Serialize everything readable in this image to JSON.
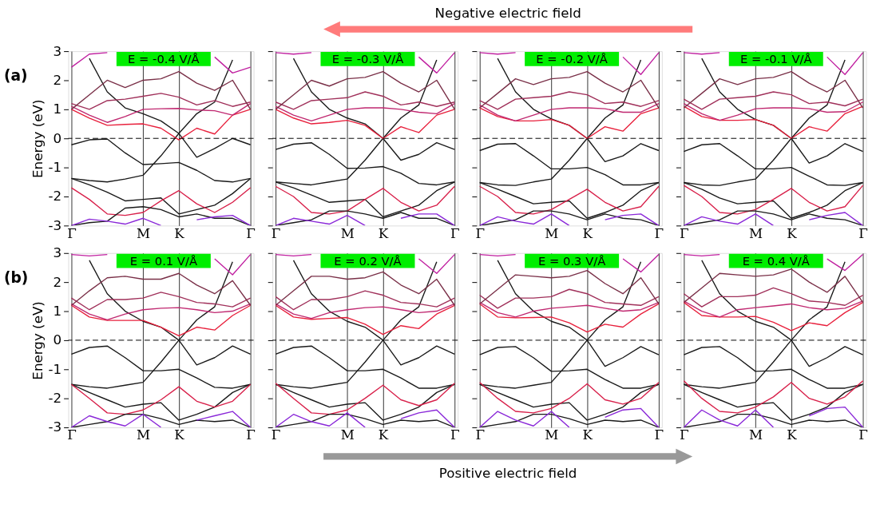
{
  "chart_data": [
    {
      "type": "line",
      "title": "E = -0.4 V/Å",
      "ylabel": "Energy (eV)",
      "annotations": [
        "(a)",
        "Negative electric field"
      ],
      "grid": "x",
      "categories": [
        "Γ",
        null,
        null,
        null,
        "M",
        null,
        "K",
        null,
        null,
        null,
        "Γ"
      ],
      "ylim": [
        -3,
        3
      ],
      "yticks": [
        -3,
        -2,
        -1,
        0,
        1,
        2,
        3
      ],
      "ref_lines": [
        {
          "axis": "y",
          "value": 0,
          "line_style": "dashed",
          "color": "#000000"
        }
      ],
      "series": [
        {
          "color": "#1a1a1a",
          "values": [
            -0.22,
            -0.05,
            -0.02,
            -0.5,
            -0.9,
            -0.87,
            -0.83,
            -1.1,
            -1.45,
            -1.5,
            -1.38
          ]
        },
        {
          "color": "#1a1a1a",
          "values": [
            -1.38,
            -1.45,
            -1.5,
            -1.4,
            -1.27,
            -0.6,
            0.17,
            -0.65,
            -0.35,
            0.0,
            -0.22
          ]
        },
        {
          "color": "#1a1a1a",
          "values": [
            null,
            2.75,
            1.6,
            1.05,
            0.85,
            0.6,
            0.17,
            0.85,
            1.25,
            2.7,
            null
          ]
        },
        {
          "color": "#e8203c",
          "values": [
            1.0,
            0.7,
            0.45,
            0.48,
            0.5,
            0.35,
            -0.05,
            0.35,
            0.15,
            0.8,
            1.0
          ]
        },
        {
          "color": "#c02870",
          "values": [
            1.1,
            0.8,
            0.55,
            0.75,
            1.0,
            1.02,
            1.03,
            0.98,
            0.95,
            0.8,
            1.2
          ]
        },
        {
          "color": "#a0305a",
          "values": [
            1.2,
            1.0,
            1.3,
            1.35,
            1.45,
            1.55,
            1.42,
            1.15,
            1.3,
            1.1,
            1.25
          ]
        },
        {
          "color": "#7a3048",
          "values": [
            1.0,
            1.5,
            2.0,
            1.75,
            2.0,
            2.05,
            2.3,
            1.9,
            1.65,
            2.0,
            1.0
          ]
        },
        {
          "color": "#c020a0",
          "values": [
            2.45,
            2.9,
            2.95,
            null,
            null,
            null,
            null,
            null,
            null,
            null,
            null
          ]
        },
        {
          "color": "#c020a0",
          "values": [
            null,
            null,
            null,
            null,
            null,
            null,
            null,
            null,
            2.8,
            2.25,
            2.45
          ]
        },
        {
          "color": "#1a1a1a",
          "values": [
            -1.38,
            -1.6,
            -1.85,
            -2.15,
            -2.1,
            -2.05,
            -2.6,
            -2.45,
            -2.3,
            -1.9,
            -1.38
          ]
        },
        {
          "color": "#d8204a",
          "values": [
            -1.7,
            -2.1,
            -2.6,
            -2.65,
            -2.55,
            -2.15,
            -1.8,
            -2.25,
            -2.55,
            -2.2,
            -1.7
          ]
        },
        {
          "color": "#1a1a1a",
          "values": [
            -3.0,
            -2.9,
            -2.85,
            -2.4,
            -2.35,
            -2.45,
            -2.7,
            -2.6,
            -2.75,
            -2.75,
            -3.0
          ]
        },
        {
          "color": "#8a28d8",
          "values": [
            -3.0,
            -2.78,
            -2.85,
            -2.95,
            -2.75,
            -3.0,
            null,
            null,
            null,
            null,
            null
          ]
        },
        {
          "color": "#8a28d8",
          "values": [
            null,
            null,
            null,
            null,
            null,
            null,
            null,
            -2.8,
            -2.7,
            -2.65,
            -3.0
          ]
        }
      ]
    },
    {
      "type": "line",
      "title": "E = -0.3 V/Å",
      "tick_labels": "x",
      "grid": "x",
      "categories": [
        "Γ",
        null,
        null,
        null,
        "M",
        null,
        "K",
        null,
        null,
        null,
        "Γ"
      ],
      "ylim": [
        -3,
        3
      ],
      "yticks": [
        -3,
        -2,
        -1,
        0,
        1,
        2,
        3
      ],
      "ref_lines": [
        {
          "axis": "y",
          "value": 0,
          "line_style": "dashed",
          "color": "#000000"
        }
      ],
      "series": [
        {
          "color": "#1a1a1a",
          "values": [
            -0.38,
            -0.2,
            -0.15,
            -0.55,
            -1.03,
            -1.02,
            -0.97,
            -1.2,
            -1.55,
            -1.6,
            -1.5
          ]
        },
        {
          "color": "#1a1a1a",
          "values": [
            -1.5,
            -1.55,
            -1.6,
            -1.5,
            -1.4,
            -0.75,
            0.0,
            -0.75,
            -0.55,
            -0.15,
            -0.38
          ]
        },
        {
          "color": "#1a1a1a",
          "values": [
            null,
            2.75,
            1.6,
            1.0,
            0.7,
            0.5,
            0.0,
            0.7,
            1.15,
            2.7,
            null
          ]
        },
        {
          "color": "#e8203c",
          "values": [
            1.0,
            0.7,
            0.5,
            0.55,
            0.62,
            0.45,
            0.0,
            0.4,
            0.2,
            0.8,
            1.0
          ]
        },
        {
          "color": "#c02870",
          "values": [
            1.1,
            0.8,
            0.6,
            0.8,
            1.0,
            1.05,
            1.05,
            1.0,
            0.9,
            0.85,
            1.2
          ]
        },
        {
          "color": "#a0305a",
          "values": [
            1.25,
            1.0,
            1.3,
            1.35,
            1.4,
            1.6,
            1.45,
            1.15,
            1.25,
            1.1,
            1.25
          ]
        },
        {
          "color": "#7a3048",
          "values": [
            1.0,
            1.5,
            2.0,
            1.8,
            2.05,
            2.1,
            2.3,
            1.9,
            1.6,
            2.0,
            1.0
          ]
        },
        {
          "color": "#c020a0",
          "values": [
            2.95,
            2.9,
            2.95,
            null,
            null,
            null,
            null,
            null,
            null,
            null,
            null
          ]
        },
        {
          "color": "#c020a0",
          "values": [
            null,
            null,
            null,
            null,
            null,
            null,
            null,
            null,
            2.8,
            2.25,
            2.95
          ]
        },
        {
          "color": "#1a1a1a",
          "values": [
            -1.5,
            -1.7,
            -1.95,
            -2.2,
            -2.15,
            -2.1,
            -2.7,
            -2.5,
            -2.3,
            -1.8,
            -1.5
          ]
        },
        {
          "color": "#d8204a",
          "values": [
            -1.65,
            -2.0,
            -2.55,
            -2.6,
            -2.5,
            -2.1,
            -1.72,
            -2.2,
            -2.5,
            -2.3,
            -1.65
          ]
        },
        {
          "color": "#1a1a1a",
          "values": [
            -3.0,
            -2.9,
            -2.8,
            -2.5,
            -2.5,
            -2.6,
            -2.75,
            -2.55,
            -2.75,
            -2.75,
            -3.0
          ]
        },
        {
          "color": "#8a28d8",
          "values": [
            -3.0,
            -2.75,
            -2.85,
            -2.95,
            -2.65,
            -3.0,
            null,
            null,
            null,
            null,
            null
          ]
        },
        {
          "color": "#8a28d8",
          "values": [
            null,
            null,
            null,
            null,
            null,
            null,
            null,
            -2.75,
            -2.6,
            -2.6,
            -3.0
          ]
        }
      ]
    },
    {
      "type": "line",
      "title": "E = -0.2 V/Å",
      "tick_labels": "x",
      "grid": "x",
      "categories": [
        "Γ",
        null,
        null,
        null,
        "M",
        null,
        "K",
        null,
        null,
        null,
        "Γ"
      ],
      "ylim": [
        -3,
        3
      ],
      "yticks": [
        -3,
        -2,
        -1,
        0,
        1,
        2,
        3
      ],
      "ref_lines": [
        {
          "axis": "y",
          "value": 0,
          "line_style": "dashed",
          "color": "#000000"
        }
      ],
      "series": [
        {
          "color": "#1a1a1a",
          "values": [
            -0.42,
            -0.2,
            -0.18,
            -0.6,
            -1.05,
            -1.05,
            -1.0,
            -1.25,
            -1.6,
            -1.6,
            -1.52
          ]
        },
        {
          "color": "#1a1a1a",
          "values": [
            -1.52,
            -1.6,
            -1.62,
            -1.5,
            -1.4,
            -0.75,
            0.0,
            -0.8,
            -0.6,
            -0.18,
            -0.42
          ]
        },
        {
          "color": "#1a1a1a",
          "values": [
            null,
            2.75,
            1.6,
            1.0,
            0.67,
            0.45,
            0.0,
            0.7,
            1.15,
            2.7,
            null
          ]
        },
        {
          "color": "#e8203c",
          "values": [
            1.05,
            0.75,
            0.6,
            0.6,
            0.65,
            0.45,
            0.0,
            0.4,
            0.25,
            0.85,
            1.05
          ]
        },
        {
          "color": "#c02870",
          "values": [
            1.15,
            0.8,
            0.6,
            0.8,
            1.0,
            1.05,
            1.05,
            1.02,
            0.9,
            0.9,
            1.2
          ]
        },
        {
          "color": "#a0305a",
          "values": [
            1.3,
            1.0,
            1.35,
            1.4,
            1.45,
            1.6,
            1.5,
            1.2,
            1.25,
            1.1,
            1.3
          ]
        },
        {
          "color": "#7a3048",
          "values": [
            1.05,
            1.55,
            2.05,
            1.85,
            2.05,
            2.1,
            2.3,
            1.9,
            1.6,
            2.0,
            1.05
          ]
        },
        {
          "color": "#c020a0",
          "values": [
            2.95,
            2.9,
            2.95,
            null,
            null,
            null,
            null,
            null,
            null,
            null,
            null
          ]
        },
        {
          "color": "#c020a0",
          "values": [
            null,
            null,
            null,
            null,
            null,
            null,
            null,
            null,
            2.8,
            2.2,
            2.95
          ]
        },
        {
          "color": "#1a1a1a",
          "values": [
            -1.52,
            -1.75,
            -2.0,
            -2.25,
            -2.2,
            -2.15,
            -2.75,
            -2.55,
            -2.3,
            -1.8,
            -1.52
          ]
        },
        {
          "color": "#d8204a",
          "values": [
            -1.65,
            -2.0,
            -2.55,
            -2.6,
            -2.45,
            -2.1,
            -1.75,
            -2.2,
            -2.5,
            -2.35,
            -1.65
          ]
        },
        {
          "color": "#1a1a1a",
          "values": [
            -3.0,
            -2.9,
            -2.8,
            -2.5,
            -2.5,
            -2.6,
            -2.8,
            -2.6,
            -2.75,
            -2.8,
            -3.0
          ]
        },
        {
          "color": "#8a28d8",
          "values": [
            -3.0,
            -2.7,
            -2.85,
            -2.95,
            -2.6,
            -3.0,
            null,
            null,
            null,
            null,
            null
          ]
        },
        {
          "color": "#8a28d8",
          "values": [
            null,
            null,
            null,
            null,
            null,
            null,
            null,
            -2.8,
            -2.65,
            -2.6,
            -3.0
          ]
        }
      ]
    },
    {
      "type": "line",
      "title": "E = -0.1 V/Å",
      "tick_labels": "x",
      "grid": "x",
      "categories": [
        "Γ",
        null,
        null,
        null,
        "M",
        null,
        "K",
        null,
        null,
        null,
        "Γ"
      ],
      "ylim": [
        -3,
        3
      ],
      "yticks": [
        -3,
        -2,
        -1,
        0,
        1,
        2,
        3
      ],
      "ref_lines": [
        {
          "axis": "y",
          "value": 0,
          "line_style": "dashed",
          "color": "#000000"
        }
      ],
      "series": [
        {
          "color": "#1a1a1a",
          "values": [
            -0.45,
            -0.22,
            -0.18,
            -0.6,
            -1.05,
            -1.05,
            -1.0,
            -1.3,
            -1.6,
            -1.62,
            -1.52
          ]
        },
        {
          "color": "#1a1a1a",
          "values": [
            -1.52,
            -1.6,
            -1.62,
            -1.5,
            -1.4,
            -0.75,
            0.0,
            -0.85,
            -0.6,
            -0.18,
            -0.45
          ]
        },
        {
          "color": "#1a1a1a",
          "values": [
            null,
            2.75,
            1.6,
            1.0,
            0.65,
            0.45,
            0.0,
            0.7,
            1.15,
            2.7,
            null
          ]
        },
        {
          "color": "#e8203c",
          "values": [
            1.1,
            0.75,
            0.62,
            0.62,
            0.65,
            0.45,
            0.0,
            0.4,
            0.25,
            0.85,
            1.1
          ]
        },
        {
          "color": "#c02870",
          "values": [
            1.2,
            0.85,
            0.62,
            0.8,
            1.02,
            1.05,
            1.05,
            1.02,
            0.9,
            0.92,
            1.25
          ]
        },
        {
          "color": "#a0305a",
          "values": [
            1.35,
            1.0,
            1.35,
            1.4,
            1.45,
            1.6,
            1.5,
            1.2,
            1.25,
            1.12,
            1.35
          ]
        },
        {
          "color": "#7a3048",
          "values": [
            1.05,
            1.55,
            2.05,
            1.85,
            2.05,
            2.1,
            2.3,
            1.9,
            1.6,
            2.0,
            1.05
          ]
        },
        {
          "color": "#c020a0",
          "values": [
            2.95,
            2.9,
            2.95,
            null,
            null,
            null,
            null,
            null,
            null,
            null,
            null
          ]
        },
        {
          "color": "#c020a0",
          "values": [
            null,
            null,
            null,
            null,
            null,
            null,
            null,
            null,
            2.8,
            2.2,
            2.95
          ]
        },
        {
          "color": "#1a1a1a",
          "values": [
            -1.52,
            -1.75,
            -2.05,
            -2.25,
            -2.2,
            -2.15,
            -2.75,
            -2.55,
            -2.3,
            -1.8,
            -1.52
          ]
        },
        {
          "color": "#d8204a",
          "values": [
            -1.62,
            -2.0,
            -2.55,
            -2.6,
            -2.45,
            -2.1,
            -1.72,
            -2.2,
            -2.5,
            -2.35,
            -1.62
          ]
        },
        {
          "color": "#1a1a1a",
          "values": [
            -3.0,
            -2.9,
            -2.8,
            -2.5,
            -2.5,
            -2.6,
            -2.8,
            -2.6,
            -2.75,
            -2.8,
            -3.0
          ]
        },
        {
          "color": "#8a28d8",
          "values": [
            -3.0,
            -2.7,
            -2.85,
            -2.95,
            -2.6,
            -3.0,
            null,
            null,
            null,
            null,
            null
          ]
        },
        {
          "color": "#8a28d8",
          "values": [
            null,
            null,
            null,
            null,
            null,
            null,
            null,
            -2.8,
            -2.65,
            -2.55,
            -3.0
          ]
        }
      ]
    },
    {
      "type": "line",
      "title": "E = 0.1 V/Å",
      "ylabel": "Energy (eV)",
      "annotations": [
        "(b)",
        "Positive electric field"
      ],
      "grid": "x",
      "categories": [
        "Γ",
        null,
        null,
        null,
        "M",
        null,
        "K",
        null,
        null,
        null,
        "Γ"
      ],
      "ylim": [
        -3,
        3
      ],
      "yticks": [
        -3,
        -2,
        -1,
        0,
        1,
        2,
        3
      ],
      "ref_lines": [
        {
          "axis": "y",
          "value": 0,
          "line_style": "dashed",
          "color": "#000000"
        }
      ],
      "series": [
        {
          "color": "#1a1a1a",
          "values": [
            -0.48,
            -0.25,
            -0.2,
            -0.6,
            -1.05,
            -1.05,
            -1.0,
            -1.3,
            -1.62,
            -1.65,
            -1.52
          ]
        },
        {
          "color": "#1a1a1a",
          "values": [
            -1.52,
            -1.6,
            -1.65,
            -1.55,
            -1.45,
            -0.75,
            0.0,
            -0.85,
            -0.6,
            -0.2,
            -0.48
          ]
        },
        {
          "color": "#1a1a1a",
          "values": [
            null,
            2.75,
            1.6,
            1.0,
            0.65,
            0.45,
            0.0,
            0.7,
            1.15,
            2.7,
            null
          ]
        },
        {
          "color": "#e8203c",
          "values": [
            1.2,
            0.8,
            0.68,
            0.68,
            0.68,
            0.45,
            0.15,
            0.45,
            0.35,
            0.85,
            1.2
          ]
        },
        {
          "color": "#c02870",
          "values": [
            1.25,
            0.9,
            0.7,
            0.9,
            1.05,
            1.1,
            1.12,
            1.05,
            0.95,
            1.0,
            1.25
          ]
        },
        {
          "color": "#a0305a",
          "values": [
            1.45,
            1.05,
            1.4,
            1.4,
            1.45,
            1.65,
            1.5,
            1.3,
            1.25,
            1.15,
            1.45
          ]
        },
        {
          "color": "#7a3048",
          "values": [
            1.2,
            1.7,
            2.15,
            2.2,
            2.1,
            2.1,
            2.3,
            1.9,
            1.6,
            2.05,
            1.2
          ]
        },
        {
          "color": "#c020a0",
          "values": [
            2.95,
            2.9,
            2.95,
            null,
            null,
            null,
            null,
            null,
            null,
            null,
            null
          ]
        },
        {
          "color": "#c020a0",
          "values": [
            null,
            null,
            null,
            null,
            null,
            null,
            null,
            null,
            2.8,
            2.25,
            2.95
          ]
        },
        {
          "color": "#1a1a1a",
          "values": [
            -1.52,
            -1.8,
            -2.05,
            -2.3,
            -2.2,
            -2.15,
            -2.75,
            -2.55,
            -2.3,
            -1.8,
            -1.52
          ]
        },
        {
          "color": "#d8204a",
          "values": [
            -1.52,
            -2.0,
            -2.5,
            -2.55,
            -2.4,
            -2.05,
            -1.6,
            -2.1,
            -2.3,
            -2.1,
            -1.52
          ]
        },
        {
          "color": "#1a1a1a",
          "values": [
            -3.0,
            -2.9,
            -2.8,
            -2.55,
            -2.55,
            -2.7,
            -2.9,
            -2.75,
            -2.8,
            -2.75,
            -3.0
          ]
        },
        {
          "color": "#8a28d8",
          "values": [
            -3.0,
            -2.6,
            -2.8,
            -2.95,
            -2.55,
            -3.0,
            null,
            null,
            null,
            null,
            null
          ]
        },
        {
          "color": "#8a28d8",
          "values": [
            null,
            null,
            null,
            null,
            null,
            null,
            null,
            -2.75,
            -2.6,
            -2.45,
            -3.0
          ]
        }
      ]
    },
    {
      "type": "line",
      "title": "E = 0.2 V/Å",
      "tick_labels": "x",
      "grid": "x",
      "categories": [
        "Γ",
        null,
        null,
        null,
        "M",
        null,
        "K",
        null,
        null,
        null,
        "Γ"
      ],
      "ylim": [
        -3,
        3
      ],
      "yticks": [
        -3,
        -2,
        -1,
        0,
        1,
        2,
        3
      ],
      "ref_lines": [
        {
          "axis": "y",
          "value": 0,
          "line_style": "dashed",
          "color": "#000000"
        }
      ],
      "series": [
        {
          "color": "#1a1a1a",
          "values": [
            -0.48,
            -0.25,
            -0.2,
            -0.6,
            -1.05,
            -1.05,
            -1.0,
            -1.3,
            -1.65,
            -1.65,
            -1.52
          ]
        },
        {
          "color": "#1a1a1a",
          "values": [
            -1.52,
            -1.6,
            -1.65,
            -1.55,
            -1.45,
            -0.75,
            0.0,
            -0.85,
            -0.6,
            -0.2,
            -0.48
          ]
        },
        {
          "color": "#1a1a1a",
          "values": [
            null,
            2.75,
            1.6,
            1.0,
            0.65,
            0.45,
            0.0,
            0.7,
            1.15,
            2.7,
            null
          ]
        },
        {
          "color": "#e8203c",
          "values": [
            1.2,
            0.8,
            0.72,
            0.75,
            0.78,
            0.55,
            0.2,
            0.5,
            0.4,
            0.9,
            1.2
          ]
        },
        {
          "color": "#c02870",
          "values": [
            1.25,
            0.9,
            0.75,
            0.95,
            1.05,
            1.12,
            1.15,
            1.05,
            0.95,
            1.0,
            1.25
          ]
        },
        {
          "color": "#a0305a",
          "values": [
            1.5,
            1.05,
            1.4,
            1.4,
            1.5,
            1.7,
            1.55,
            1.3,
            1.25,
            1.15,
            1.45
          ]
        },
        {
          "color": "#7a3048",
          "values": [
            1.2,
            1.7,
            2.2,
            2.2,
            2.1,
            2.15,
            2.35,
            1.9,
            1.6,
            2.1,
            1.2
          ]
        },
        {
          "color": "#c020a0",
          "values": [
            2.95,
            2.9,
            2.95,
            null,
            null,
            null,
            null,
            null,
            null,
            null,
            null
          ]
        },
        {
          "color": "#c020a0",
          "values": [
            null,
            null,
            null,
            null,
            null,
            null,
            null,
            null,
            2.8,
            2.3,
            2.95
          ]
        },
        {
          "color": "#1a1a1a",
          "values": [
            -1.52,
            -1.8,
            -2.05,
            -2.3,
            -2.2,
            -2.15,
            -2.75,
            -2.55,
            -2.3,
            -1.8,
            -1.52
          ]
        },
        {
          "color": "#d8204a",
          "values": [
            -1.48,
            -2.0,
            -2.5,
            -2.55,
            -2.4,
            -2.0,
            -1.55,
            -2.05,
            -2.25,
            -2.05,
            -1.48
          ]
        },
        {
          "color": "#1a1a1a",
          "values": [
            -3.0,
            -2.9,
            -2.8,
            -2.55,
            -2.55,
            -2.7,
            -2.9,
            -2.75,
            -2.8,
            -2.75,
            -3.0
          ]
        },
        {
          "color": "#8a28d8",
          "values": [
            -3.0,
            -2.55,
            -2.8,
            -2.95,
            -2.5,
            -3.0,
            null,
            null,
            null,
            null,
            null
          ]
        },
        {
          "color": "#8a28d8",
          "values": [
            null,
            null,
            null,
            null,
            null,
            null,
            null,
            -2.7,
            -2.5,
            -2.4,
            -3.0
          ]
        }
      ]
    },
    {
      "type": "line",
      "title": "E = 0.3 V/Å",
      "tick_labels": "x",
      "grid": "x",
      "categories": [
        "Γ",
        null,
        null,
        null,
        "M",
        null,
        "K",
        null,
        null,
        null,
        "Γ"
      ],
      "ylim": [
        -3,
        3
      ],
      "yticks": [
        -3,
        -2,
        -1,
        0,
        1,
        2,
        3
      ],
      "ref_lines": [
        {
          "axis": "y",
          "value": 0,
          "line_style": "dashed",
          "color": "#000000"
        }
      ],
      "series": [
        {
          "color": "#1a1a1a",
          "values": [
            -0.5,
            -0.25,
            -0.22,
            -0.6,
            -1.07,
            -1.05,
            -1.0,
            -1.35,
            -1.65,
            -1.65,
            -1.52
          ]
        },
        {
          "color": "#1a1a1a",
          "values": [
            -1.52,
            -1.6,
            -1.65,
            -1.55,
            -1.45,
            -0.75,
            0.0,
            -0.9,
            -0.6,
            -0.22,
            -0.5
          ]
        },
        {
          "color": "#1a1a1a",
          "values": [
            null,
            2.75,
            1.6,
            1.0,
            0.65,
            0.45,
            0.0,
            0.7,
            1.15,
            2.7,
            null
          ]
        },
        {
          "color": "#e8203c",
          "values": [
            1.25,
            0.8,
            0.77,
            0.78,
            0.8,
            0.6,
            0.28,
            0.55,
            0.45,
            0.9,
            1.25
          ]
        },
        {
          "color": "#c02870",
          "values": [
            1.3,
            0.95,
            0.8,
            1.0,
            1.1,
            1.15,
            1.2,
            1.1,
            1.0,
            1.05,
            1.3
          ]
        },
        {
          "color": "#a0305a",
          "values": [
            1.55,
            1.1,
            1.45,
            1.45,
            1.5,
            1.75,
            1.6,
            1.3,
            1.25,
            1.2,
            1.5
          ]
        },
        {
          "color": "#7a3048",
          "values": [
            1.25,
            1.75,
            2.25,
            2.2,
            2.15,
            2.2,
            2.4,
            1.95,
            1.6,
            2.15,
            1.25
          ]
        },
        {
          "color": "#c020a0",
          "values": [
            2.95,
            2.9,
            2.95,
            null,
            null,
            null,
            null,
            null,
            null,
            null,
            null
          ]
        },
        {
          "color": "#c020a0",
          "values": [
            null,
            null,
            null,
            null,
            null,
            null,
            null,
            null,
            2.8,
            2.35,
            2.95
          ]
        },
        {
          "color": "#1a1a1a",
          "values": [
            -1.52,
            -1.8,
            -2.05,
            -2.3,
            -2.2,
            -2.15,
            -2.75,
            -2.55,
            -2.3,
            -1.8,
            -1.52
          ]
        },
        {
          "color": "#d8204a",
          "values": [
            -1.45,
            -2.0,
            -2.45,
            -2.5,
            -2.35,
            -2.0,
            -1.5,
            -2.05,
            -2.2,
            -2.0,
            -1.45
          ]
        },
        {
          "color": "#1a1a1a",
          "values": [
            -3.0,
            -2.9,
            -2.8,
            -2.55,
            -2.55,
            -2.7,
            -2.9,
            -2.75,
            -2.8,
            -2.75,
            -3.0
          ]
        },
        {
          "color": "#8a28d8",
          "values": [
            -3.0,
            -2.45,
            -2.75,
            -2.95,
            -2.45,
            -3.0,
            null,
            null,
            null,
            null,
            null
          ]
        },
        {
          "color": "#8a28d8",
          "values": [
            null,
            null,
            null,
            null,
            null,
            null,
            null,
            -2.65,
            -2.4,
            -2.35,
            -3.0
          ]
        }
      ]
    },
    {
      "type": "line",
      "title": "E = 0.4 V/Å",
      "tick_labels": "x",
      "grid": "x",
      "categories": [
        "Γ",
        null,
        null,
        null,
        "M",
        null,
        "K",
        null,
        null,
        null,
        "Γ"
      ],
      "ylim": [
        -3,
        3
      ],
      "yticks": [
        -3,
        -2,
        -1,
        0,
        1,
        2,
        3
      ],
      "ref_lines": [
        {
          "axis": "y",
          "value": 0,
          "line_style": "dashed",
          "color": "#000000"
        }
      ],
      "series": [
        {
          "color": "#1a1a1a",
          "values": [
            -0.5,
            -0.25,
            -0.22,
            -0.6,
            -1.07,
            -1.05,
            -1.0,
            -1.35,
            -1.65,
            -1.65,
            -1.52
          ]
        },
        {
          "color": "#1a1a1a",
          "values": [
            -1.52,
            -1.6,
            -1.65,
            -1.55,
            -1.45,
            -0.75,
            0.0,
            -0.9,
            -0.6,
            -0.22,
            -0.5
          ]
        },
        {
          "color": "#1a1a1a",
          "values": [
            null,
            2.75,
            1.6,
            1.0,
            0.65,
            0.45,
            0.0,
            0.7,
            1.15,
            2.7,
            null
          ]
        },
        {
          "color": "#e8203c",
          "values": [
            1.3,
            0.85,
            0.8,
            0.8,
            0.82,
            0.62,
            0.33,
            0.6,
            0.5,
            0.95,
            1.3
          ]
        },
        {
          "color": "#c02870",
          "values": [
            1.35,
            1.0,
            0.8,
            1.05,
            1.12,
            1.18,
            1.25,
            1.12,
            1.05,
            1.1,
            1.35
          ]
        },
        {
          "color": "#a0305a",
          "values": [
            1.6,
            1.15,
            1.5,
            1.5,
            1.55,
            1.8,
            1.6,
            1.35,
            1.3,
            1.2,
            1.55
          ]
        },
        {
          "color": "#7a3048",
          "values": [
            1.3,
            1.8,
            2.3,
            2.25,
            2.2,
            2.25,
            2.45,
            2.0,
            1.65,
            2.2,
            1.3
          ]
        },
        {
          "color": "#c020a0",
          "values": [
            2.95,
            2.9,
            2.95,
            null,
            null,
            null,
            null,
            null,
            null,
            null,
            null
          ]
        },
        {
          "color": "#c020a0",
          "values": [
            null,
            null,
            null,
            null,
            null,
            null,
            null,
            null,
            2.8,
            2.4,
            2.95
          ]
        },
        {
          "color": "#1a1a1a",
          "values": [
            -1.52,
            -1.8,
            -2.05,
            -2.3,
            -2.2,
            -2.15,
            -2.75,
            -2.55,
            -2.3,
            -1.8,
            -1.52
          ]
        },
        {
          "color": "#d8204a",
          "values": [
            -1.4,
            -2.0,
            -2.45,
            -2.5,
            -2.3,
            -1.95,
            -1.45,
            -2.0,
            -2.2,
            -1.95,
            -1.4
          ]
        },
        {
          "color": "#1a1a1a",
          "values": [
            -3.0,
            -2.9,
            -2.8,
            -2.55,
            -2.55,
            -2.7,
            -2.9,
            -2.75,
            -2.8,
            -2.75,
            -3.0
          ]
        },
        {
          "color": "#8a28d8",
          "values": [
            -3.0,
            -2.4,
            -2.75,
            -2.95,
            -2.4,
            -3.0,
            null,
            null,
            null,
            null,
            null
          ]
        },
        {
          "color": "#8a28d8",
          "values": [
            null,
            null,
            null,
            null,
            null,
            null,
            null,
            -2.6,
            -2.35,
            -2.3,
            -3.0
          ]
        }
      ]
    }
  ]
}
